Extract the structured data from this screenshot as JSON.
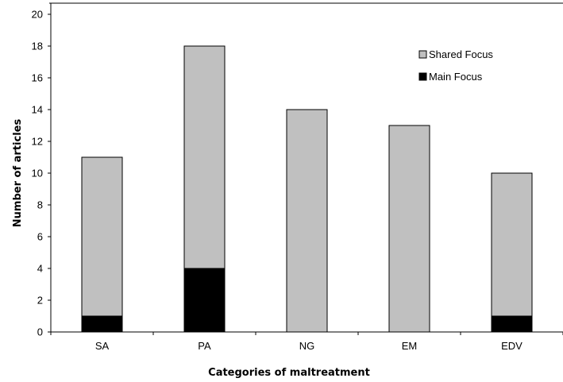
{
  "chart_data": {
    "type": "bar",
    "stacked": true,
    "categories": [
      "SA",
      "PA",
      "NG",
      "EM",
      "EDV"
    ],
    "series": [
      {
        "name": "Main Focus",
        "values": [
          1,
          4,
          0,
          0,
          1
        ],
        "color": "#000000"
      },
      {
        "name": "Shared Focus",
        "values": [
          10,
          14,
          14,
          13,
          9
        ],
        "color": "#c0c0c0"
      }
    ],
    "xlabel": "Categories of maltreatment",
    "ylabel": "Number of articles",
    "ylim": [
      0,
      20
    ],
    "yticks": [
      0,
      2,
      4,
      6,
      8,
      10,
      12,
      14,
      16,
      18,
      20
    ],
    "grid": false,
    "legend": {
      "position": "top-right",
      "entries": [
        "Shared Focus",
        "Main Focus"
      ]
    }
  }
}
